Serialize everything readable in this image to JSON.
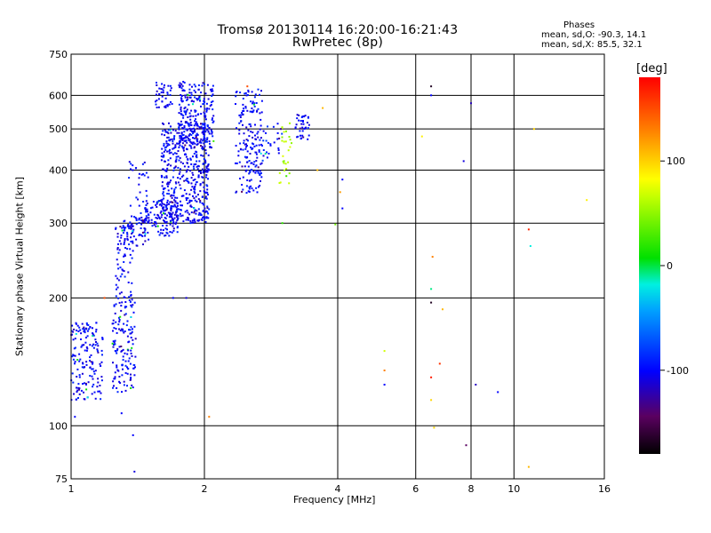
{
  "chart_data": {
    "type": "scatter",
    "title": "Tromsø 20130114 16:20:00-16:21:43",
    "subtitle": "RwPretec (8p)",
    "xlabel": "Frequency [MHz]",
    "ylabel": "Stationary phase Virtual Height [km]",
    "x_scale": "log",
    "y_scale": "log",
    "xlim": [
      1,
      16
    ],
    "ylim": [
      75,
      750
    ],
    "x_ticks": [
      1,
      2,
      4,
      6,
      8,
      10,
      16
    ],
    "y_ticks": [
      75,
      100,
      200,
      300,
      400,
      500,
      600,
      750
    ],
    "grid": true,
    "stats": {
      "title": "Phases",
      "line1": "mean, sd,O: -90.3, 14.1",
      "line2": "mean, sd,X: 85.5, 32.1"
    },
    "colorbar": {
      "label": "[deg]",
      "range": [
        -180,
        180
      ],
      "ticks": [
        100,
        0,
        -100
      ]
    },
    "clusters": [
      {
        "f": [
          1.0,
          1.18
        ],
        "h": [
          115,
          175
        ],
        "phase": -100,
        "n": 160
      },
      {
        "f": [
          1.24,
          1.4
        ],
        "h": [
          120,
          200
        ],
        "phase": -100,
        "n": 140
      },
      {
        "f": [
          1.26,
          1.38
        ],
        "h": [
          200,
          300
        ],
        "phase": -100,
        "n": 70
      },
      {
        "f": [
          1.3,
          1.5
        ],
        "h": [
          265,
          310
        ],
        "phase": -100,
        "n": 60
      },
      {
        "f": [
          1.35,
          1.5
        ],
        "h": [
          300,
          420
        ],
        "phase": -100,
        "n": 40
      },
      {
        "f": [
          1.45,
          1.75
        ],
        "h": [
          280,
          340
        ],
        "phase": -100,
        "n": 120
      },
      {
        "f": [
          1.6,
          2.05
        ],
        "h": [
          300,
          520
        ],
        "phase": -100,
        "n": 500
      },
      {
        "f": [
          1.75,
          2.1
        ],
        "h": [
          450,
          650
        ],
        "phase": -100,
        "n": 220
      },
      {
        "f": [
          1.55,
          1.7
        ],
        "h": [
          560,
          650
        ],
        "phase": -100,
        "n": 40
      },
      {
        "f": [
          2.35,
          2.7
        ],
        "h": [
          350,
          620
        ],
        "phase": -100,
        "n": 180
      },
      {
        "f": [
          2.7,
          3.0
        ],
        "h": [
          420,
          520
        ],
        "phase": -90,
        "n": 25
      },
      {
        "f": [
          3.2,
          3.45
        ],
        "h": [
          470,
          540
        ],
        "phase": -100,
        "n": 40
      },
      {
        "f": [
          2.95,
          3.15
        ],
        "h": [
          370,
          520
        ],
        "phase": 60,
        "n": 30
      }
    ],
    "points": [
      [
        1.02,
        105,
        -100
      ],
      [
        1.19,
        200,
        150
      ],
      [
        1.3,
        107,
        -100
      ],
      [
        1.38,
        95,
        -100
      ],
      [
        1.39,
        78,
        -110
      ],
      [
        1.7,
        200,
        -100
      ],
      [
        1.82,
        200,
        -110
      ],
      [
        2.05,
        105,
        130
      ],
      [
        2.5,
        630,
        150
      ],
      [
        3.0,
        300,
        20
      ],
      [
        3.7,
        560,
        110
      ],
      [
        3.6,
        400,
        110
      ],
      [
        4.1,
        380,
        -100
      ],
      [
        4.1,
        325,
        -100
      ],
      [
        4.05,
        355,
        120
      ],
      [
        3.95,
        298,
        40
      ],
      [
        5.1,
        150,
        70
      ],
      [
        5.1,
        135,
        130
      ],
      [
        5.1,
        125,
        -100
      ],
      [
        6.2,
        480,
        90
      ],
      [
        6.5,
        630,
        -170
      ],
      [
        6.5,
        600,
        -100
      ],
      [
        6.55,
        250,
        130
      ],
      [
        6.5,
        210,
        -10
      ],
      [
        6.5,
        195,
        -170
      ],
      [
        6.5,
        130,
        170
      ],
      [
        6.5,
        115,
        100
      ],
      [
        6.8,
        140,
        160
      ],
      [
        6.9,
        188,
        110
      ],
      [
        6.6,
        99,
        100
      ],
      [
        7.7,
        420,
        -110
      ],
      [
        7.8,
        90,
        -150
      ],
      [
        8.0,
        575,
        -120
      ],
      [
        8.2,
        125,
        -120
      ],
      [
        9.2,
        120,
        -100
      ],
      [
        10.8,
        290,
        165
      ],
      [
        10.9,
        265,
        -20
      ],
      [
        10.8,
        80,
        110
      ],
      [
        11.1,
        500,
        100
      ],
      [
        14.6,
        340,
        90
      ]
    ]
  }
}
